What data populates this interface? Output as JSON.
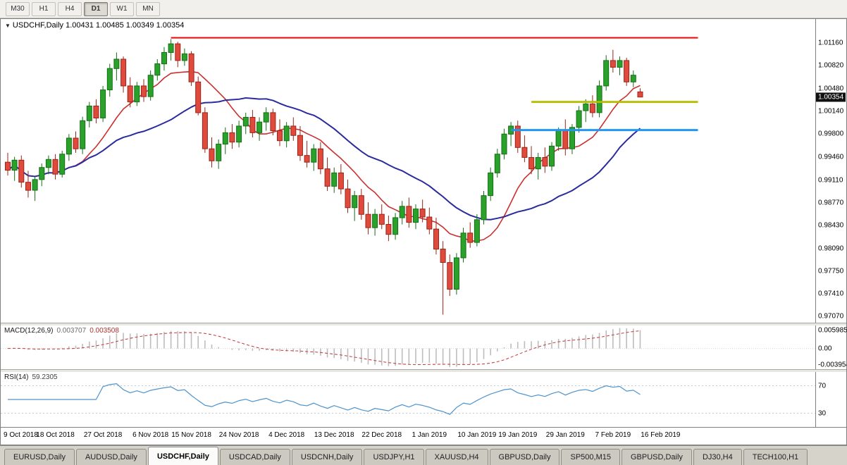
{
  "icons": {
    "dropdown": "▼"
  },
  "toolbar": {
    "timeframes": [
      "M30",
      "H1",
      "H4",
      "D1",
      "W1",
      "MN"
    ],
    "active": "D1"
  },
  "title": {
    "symbol": "USDCHF,Daily",
    "ohlc": "1.00431 1.00485 1.00349 1.00354"
  },
  "colors": {
    "bull": "#2aa12a",
    "bull_border": "#156e15",
    "bear": "#e04a3c",
    "bear_border": "#9a2418",
    "ma_fast": "#cc2f2f",
    "ma_slow": "#2b2b9e",
    "resistance_line": "#ff0000",
    "mid_line": "#b4bd00",
    "support_line": "#2196f3",
    "badge_bg": "#111111",
    "badge_text": "#ffffff",
    "macd_hist": "#bdbdbd",
    "macd_signal": "#c23b3b",
    "rsi_line": "#4f94cd",
    "level_line": "#c9c9c9"
  },
  "chart_data": {
    "type": "candlestick",
    "symbol": "USDCHF",
    "timeframe": "Daily",
    "current_ohlc": {
      "open": "1.00431",
      "high": "1.00485",
      "low": "1.00349",
      "close": "1.00354"
    },
    "candle_format": [
      "open",
      "high",
      "low",
      "close"
    ],
    "candles": [
      [
        0.9938,
        0.9952,
        0.9918,
        0.9926
      ],
      [
        0.9926,
        0.9946,
        0.991,
        0.9941
      ],
      [
        0.9941,
        0.9948,
        0.99,
        0.9908
      ],
      [
        0.9908,
        0.9925,
        0.9885,
        0.9896
      ],
      [
        0.9896,
        0.9916,
        0.988,
        0.9912
      ],
      [
        0.9912,
        0.9936,
        0.9902,
        0.993
      ],
      [
        0.993,
        0.9948,
        0.992,
        0.9942
      ],
      [
        0.9942,
        0.995,
        0.9912,
        0.992
      ],
      [
        0.992,
        0.9955,
        0.9915,
        0.995
      ],
      [
        0.995,
        0.998,
        0.994,
        0.9974
      ],
      [
        0.9974,
        0.9984,
        0.9952,
        0.9958
      ],
      [
        0.9958,
        1.0006,
        0.995,
        1.0
      ],
      [
        1.0,
        1.0028,
        0.999,
        1.0022
      ],
      [
        1.0022,
        1.0032,
        0.9996,
        1.0004
      ],
      [
        1.0004,
        1.0052,
        0.9998,
        1.0046
      ],
      [
        1.0046,
        1.0085,
        1.0036,
        1.0078
      ],
      [
        1.0078,
        1.0102,
        1.006,
        1.0092
      ],
      [
        1.0092,
        1.0096,
        1.0042,
        1.0052
      ],
      [
        1.0052,
        1.0065,
        1.002,
        1.0028
      ],
      [
        1.0028,
        1.0058,
        1.0022,
        1.0052
      ],
      [
        1.0052,
        1.0062,
        1.0028,
        1.0036
      ],
      [
        1.0036,
        1.0075,
        1.003,
        1.0068
      ],
      [
        1.0068,
        1.0092,
        1.006,
        1.0085
      ],
      [
        1.0085,
        1.011,
        1.0075,
        1.0102
      ],
      [
        1.0102,
        1.0122,
        1.009,
        1.0115
      ],
      [
        1.0115,
        1.0118,
        1.008,
        1.009
      ],
      [
        1.009,
        1.0108,
        1.0082,
        1.01
      ],
      [
        1.01,
        1.0104,
        1.0052,
        1.0058
      ],
      [
        1.0058,
        1.0066,
        1.0008,
        1.0012
      ],
      [
        1.0012,
        1.002,
        0.9952,
        0.9958
      ],
      [
        0.9958,
        0.9975,
        0.993,
        0.994
      ],
      [
        0.994,
        0.9972,
        0.9928,
        0.9965
      ],
      [
        0.9965,
        0.999,
        0.995,
        0.9982
      ],
      [
        0.9982,
        0.9995,
        0.9958,
        0.9968
      ],
      [
        0.9968,
        1.0,
        0.996,
        0.9992
      ],
      [
        0.9992,
        1.0012,
        0.998,
        1.0005
      ],
      [
        1.0005,
        1.0016,
        0.9975,
        0.9982
      ],
      [
        0.9982,
        1.0005,
        0.997,
        0.9998
      ],
      [
        0.9998,
        1.002,
        0.9985,
        1.0012
      ],
      [
        1.0012,
        1.0018,
        0.9978,
        0.9985
      ],
      [
        0.9985,
        1.0002,
        0.9962,
        0.997
      ],
      [
        0.997,
        0.9998,
        0.996,
        0.9992
      ],
      [
        0.9992,
        1.0005,
        0.997,
        0.9978
      ],
      [
        0.9978,
        0.9992,
        0.994,
        0.9948
      ],
      [
        0.9948,
        0.997,
        0.993,
        0.9938
      ],
      [
        0.9938,
        0.9965,
        0.9925,
        0.9958
      ],
      [
        0.9958,
        0.9968,
        0.992,
        0.9928
      ],
      [
        0.9928,
        0.9945,
        0.9895,
        0.9902
      ],
      [
        0.9902,
        0.993,
        0.9892,
        0.9922
      ],
      [
        0.9922,
        0.9935,
        0.989,
        0.9898
      ],
      [
        0.9898,
        0.9912,
        0.9862,
        0.987
      ],
      [
        0.987,
        0.9895,
        0.985,
        0.9888
      ],
      [
        0.9888,
        0.9898,
        0.9852,
        0.986
      ],
      [
        0.986,
        0.9878,
        0.983,
        0.984
      ],
      [
        0.984,
        0.9868,
        0.9828,
        0.986
      ],
      [
        0.986,
        0.9875,
        0.9838,
        0.9845
      ],
      [
        0.9845,
        0.9858,
        0.982,
        0.983
      ],
      [
        0.983,
        0.9862,
        0.9822,
        0.9855
      ],
      [
        0.9855,
        0.988,
        0.9845,
        0.9872
      ],
      [
        0.9872,
        0.9885,
        0.984,
        0.9848
      ],
      [
        0.9848,
        0.9875,
        0.9838,
        0.9868
      ],
      [
        0.9868,
        0.9882,
        0.9848,
        0.9856
      ],
      [
        0.9856,
        0.987,
        0.983,
        0.9838
      ],
      [
        0.9838,
        0.9855,
        0.98,
        0.9808
      ],
      [
        0.9808,
        0.982,
        0.971,
        0.9788
      ],
      [
        0.9788,
        0.98,
        0.9738,
        0.9748
      ],
      [
        0.9748,
        0.9802,
        0.974,
        0.9795
      ],
      [
        0.9795,
        0.984,
        0.9788,
        0.9832
      ],
      [
        0.9832,
        0.9848,
        0.981,
        0.9818
      ],
      [
        0.9818,
        0.986,
        0.9812,
        0.9852
      ],
      [
        0.9852,
        0.9895,
        0.9845,
        0.9888
      ],
      [
        0.9888,
        0.993,
        0.988,
        0.9922
      ],
      [
        0.9922,
        0.9958,
        0.9915,
        0.995
      ],
      [
        0.995,
        0.9988,
        0.9942,
        0.998
      ],
      [
        0.998,
        0.9998,
        0.9962,
        0.9992
      ],
      [
        0.9992,
        1.0,
        0.9952,
        0.996
      ],
      [
        0.996,
        0.9978,
        0.9938,
        0.9945
      ],
      [
        0.9945,
        0.9962,
        0.992,
        0.9928
      ],
      [
        0.9928,
        0.9952,
        0.9912,
        0.9945
      ],
      [
        0.9945,
        0.996,
        0.9922,
        0.9932
      ],
      [
        0.9932,
        0.9968,
        0.9925,
        0.9962
      ],
      [
        0.9962,
        0.999,
        0.9955,
        0.9985
      ],
      [
        0.9985,
        1.0002,
        0.9948,
        0.9958
      ],
      [
        0.9958,
        0.9995,
        0.995,
        0.999
      ],
      [
        0.999,
        1.0022,
        0.9982,
        1.0015
      ],
      [
        1.0015,
        1.0032,
        0.9998,
        1.0025
      ],
      [
        1.0025,
        1.0038,
        1.0005,
        1.0012
      ],
      [
        1.0012,
        1.006,
        1.0005,
        1.0052
      ],
      [
        1.0052,
        1.0098,
        1.0045,
        1.009
      ],
      [
        1.009,
        1.0106,
        1.0072,
        1.008
      ],
      [
        1.008,
        1.0096,
        1.0068,
        1.009
      ],
      [
        1.009,
        1.0094,
        1.0052,
        1.0058
      ],
      [
        1.0058,
        1.0075,
        1.005,
        1.0068
      ],
      [
        1.00431,
        1.00485,
        1.00349,
        1.00354
      ]
    ],
    "price_axis": {
      "top": 1.0152,
      "bottom": 0.9698,
      "labels": [
        "1.01160",
        "1.00820",
        "1.00480",
        "1.00140",
        "0.99800",
        "0.99460",
        "0.99110",
        "0.98770",
        "0.98430",
        "0.98090",
        "0.97750",
        "0.97410",
        "0.97070"
      ],
      "current": "1.00354",
      "current_value": 1.00354
    },
    "x_axis": {
      "labels": [
        {
          "text": "9 Oct 2018",
          "bar": 0
        },
        {
          "text": "18 Oct 2018",
          "bar": 7
        },
        {
          "text": "27 Oct 2018",
          "bar": 14
        },
        {
          "text": "6 Nov 2018",
          "bar": 21
        },
        {
          "text": "15 Nov 2018",
          "bar": 27
        },
        {
          "text": "24 Nov 2018",
          "bar": 34
        },
        {
          "text": "4 Dec 2018",
          "bar": 41
        },
        {
          "text": "13 Dec 2018",
          "bar": 48
        },
        {
          "text": "22 Dec 2018",
          "bar": 55
        },
        {
          "text": "1 Jan 2019",
          "bar": 62
        },
        {
          "text": "10 Jan 2019",
          "bar": 69
        },
        {
          "text": "19 Jan 2019",
          "bar": 75
        },
        {
          "text": "29 Jan 2019",
          "bar": 82
        },
        {
          "text": "7 Feb 2019",
          "bar": 89
        },
        {
          "text": "16 Feb 2019",
          "bar": 96
        }
      ]
    },
    "hlines": [
      {
        "name": "resistance-line",
        "price": 1.0124,
        "from_bar": 24,
        "to_bar": 101.5,
        "width": 2,
        "color_key": "resistance_line"
      },
      {
        "name": "broken-resistance-line",
        "price": 1.0028,
        "from_bar": 77,
        "to_bar": 101.5,
        "width": 3,
        "color_key": "mid_line"
      },
      {
        "name": "support-line",
        "price": 0.9986,
        "from_bar": 74,
        "to_bar": 101.5,
        "width": 3,
        "color_key": "support_line"
      }
    ],
    "overlays": [
      {
        "name": "ma-fast-line",
        "period": 10,
        "width": 1.6,
        "color_key": "ma_fast"
      },
      {
        "name": "ma-slow-line",
        "period": 25,
        "width": 2,
        "color_key": "ma_slow"
      }
    ],
    "macd": {
      "label": "MACD(12,26,9)",
      "value_main": "0.003707",
      "value_signal": "0.003508",
      "fast": 12,
      "slow": 26,
      "signal": 9,
      "axis_labels": [
        "0.005985",
        "0.00",
        "-0.003954"
      ]
    },
    "rsi": {
      "label": "RSI(14)",
      "value": "59.2305",
      "period": 14,
      "levels": [
        "70",
        "30"
      ],
      "level_values": [
        70,
        30
      ]
    }
  },
  "tabs": {
    "items": [
      "EURUSD,Daily",
      "AUDUSD,Daily",
      "USDCHF,Daily",
      "USDCAD,Daily",
      "USDCNH,Daily",
      "USDJPY,H1",
      "XAUUSD,H4",
      "GBPUSD,Daily",
      "SP500,M15",
      "GBPUSD,Daily",
      "DJ30,H4",
      "TECH100,H1"
    ],
    "active_index": 2
  }
}
